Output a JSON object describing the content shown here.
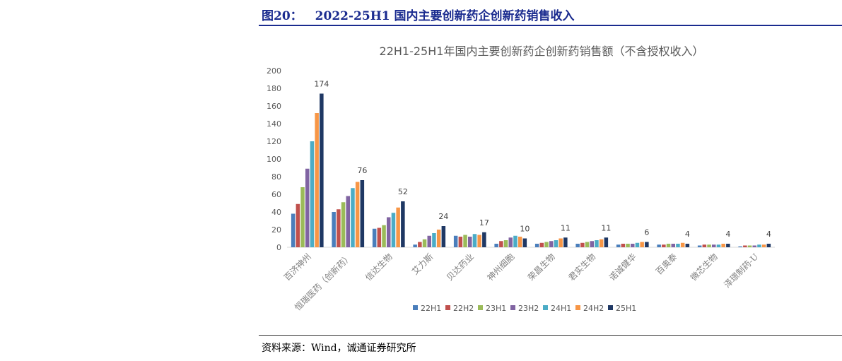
{
  "figure": {
    "number": "图20：",
    "title": "2022-25H1 国内主要创新药企创新药销售收入",
    "source": "资料来源：Wind，诚通证券研究所"
  },
  "chart_data": {
    "type": "bar",
    "title": "22H1-25H1年国内主要创新药企创新药销售额（不含授权收入）",
    "categories": [
      "百济神州",
      "恒瑞医药（创新药）",
      "信达生物",
      "艾力斯",
      "贝达药业",
      "神州细胞",
      "荣昌生物",
      "君实生物",
      "诺诚健华",
      "百奥泰",
      "微芯生物",
      "泽璟制药-U"
    ],
    "series": [
      {
        "name": "22H1",
        "color": "#4a7ebb",
        "values": [
          38,
          40,
          21,
          3,
          13,
          4,
          4,
          4,
          3,
          3,
          2,
          1
        ]
      },
      {
        "name": "22H2",
        "color": "#c0504d",
        "values": [
          49,
          43,
          22,
          6,
          12,
          7,
          5,
          5,
          4,
          3,
          3,
          2
        ]
      },
      {
        "name": "23H1",
        "color": "#9bbb59",
        "values": [
          68,
          51,
          25,
          9,
          14,
          8,
          6,
          6,
          4,
          4,
          3,
          2
        ]
      },
      {
        "name": "23H2",
        "color": "#8064a2",
        "values": [
          89,
          58,
          34,
          13,
          12,
          11,
          7,
          7,
          4,
          4,
          3,
          2
        ]
      },
      {
        "name": "24H1",
        "color": "#4bacc6",
        "values": [
          120,
          67,
          39,
          16,
          15,
          13,
          8,
          8,
          5,
          4,
          3,
          3
        ]
      },
      {
        "name": "24H2",
        "color": "#f79646",
        "values": [
          152,
          74,
          45,
          20,
          14,
          12,
          10,
          9,
          6,
          5,
          4,
          3
        ]
      },
      {
        "name": "25H1",
        "color": "#1f3864",
        "values": [
          174,
          76,
          52,
          24,
          17,
          10,
          11,
          11,
          6,
          4,
          4,
          4
        ]
      }
    ],
    "data_labels": [
      174,
      76,
      52,
      24,
      17,
      10,
      11,
      11,
      6,
      4,
      4,
      4
    ],
    "ylim": [
      0,
      200
    ],
    "yticks": [
      0,
      20,
      40,
      60,
      80,
      100,
      120,
      140,
      160,
      180,
      200
    ],
    "grid": false,
    "legend": "bottom"
  }
}
